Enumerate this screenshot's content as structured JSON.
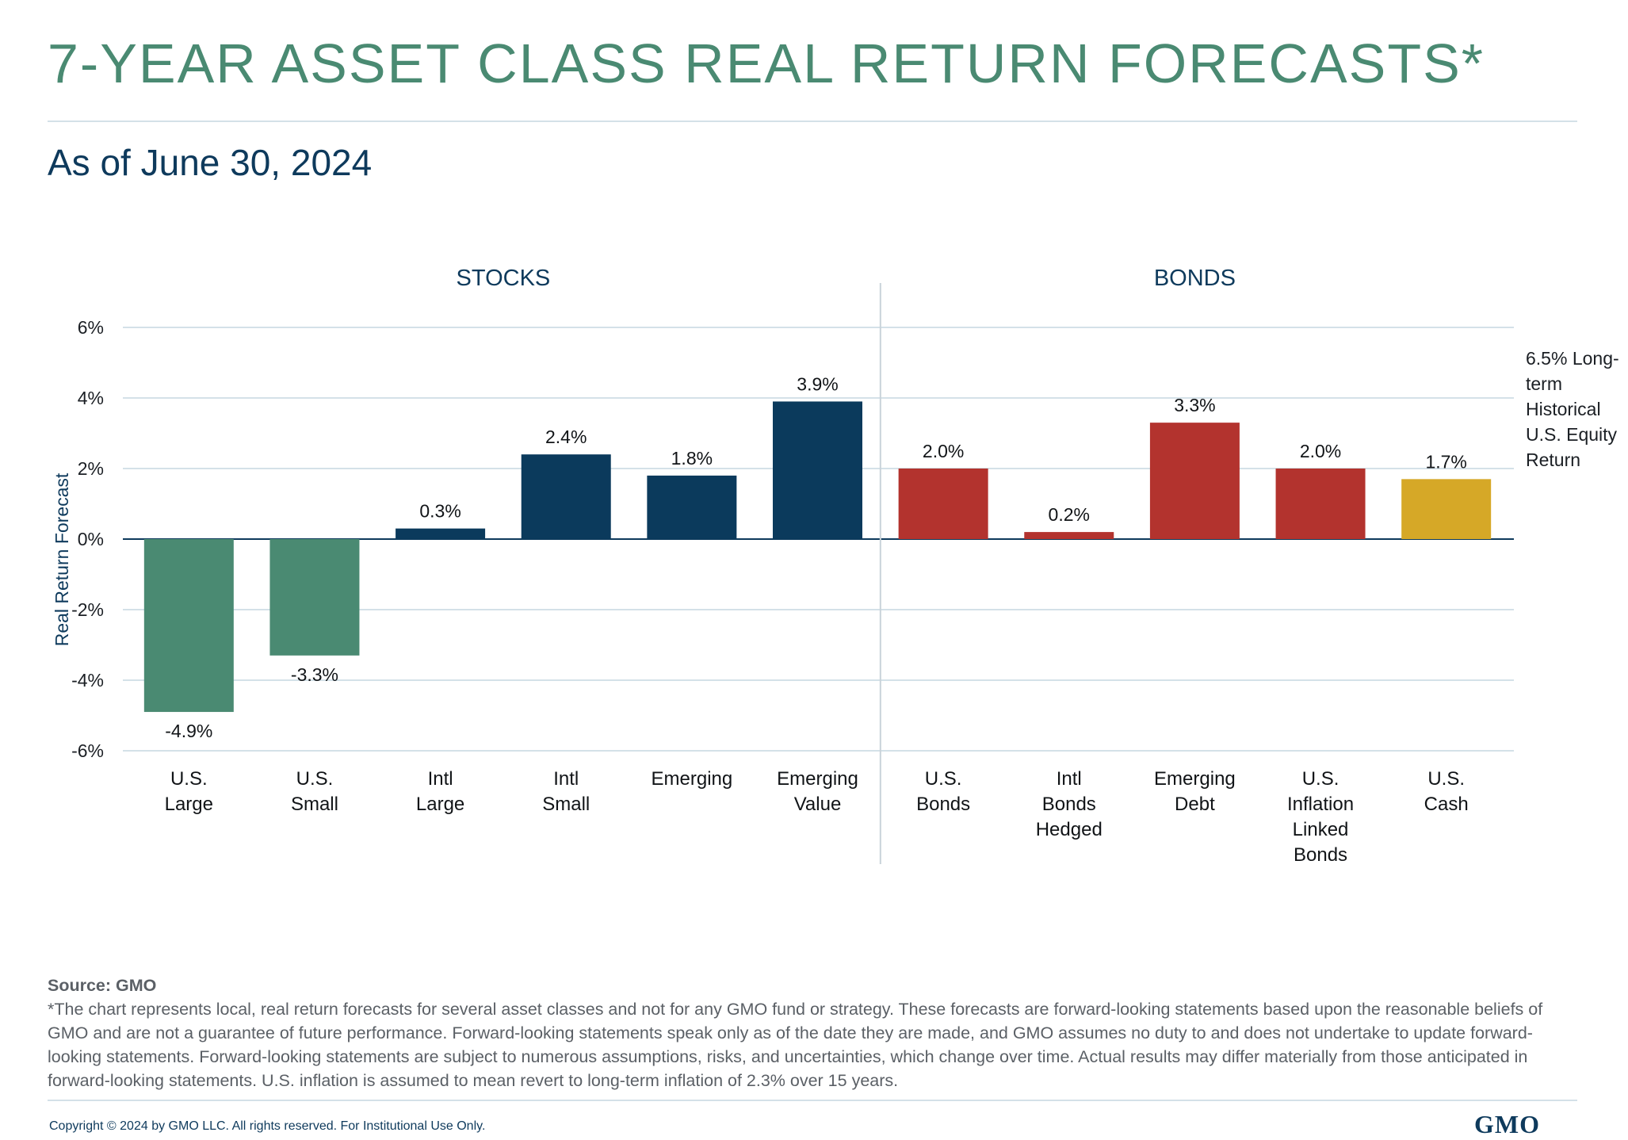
{
  "header": {
    "title": "7-YEAR ASSET CLASS REAL RETURN FORECASTS*",
    "subtitle": "As of June 30, 2024"
  },
  "footer": {
    "source": "Source: GMO",
    "note": "*The chart represents local, real return forecasts for several asset classes and not for any GMO fund or strategy. These forecasts are forward-looking statements based upon the reasonable beliefs of GMO and are not a guarantee of future performance. Forward-looking statements speak only as of the date they are made, and GMO assumes no duty to and does not undertake to update forward-looking statements. Forward-looking statements are subject to numerous assumptions, risks, and uncertainties, which change over time. Actual results may differ materially from those anticipated in forward-looking statements. U.S. inflation is assumed to mean revert to long-term inflation of 2.3% over 15 years.",
    "copyright": "Copyright © 2024 by GMO LLC. All rights reserved. For Institutional Use Only.",
    "logo": "GMO"
  },
  "colors": {
    "title": "#4a8a72",
    "navy": "#0e3a5c",
    "us_equity": "#4a8a72",
    "intl_equity": "#0b3a5c",
    "bonds": "#b3332e",
    "cash": "#d6a827",
    "grid": "#d4e1e8"
  },
  "chart_data": {
    "type": "bar",
    "ylabel": "Real Return Forecast",
    "ylim": [
      -6,
      6
    ],
    "yticks": [
      -6,
      -4,
      -2,
      0,
      2,
      4,
      6
    ],
    "ytick_labels": [
      "-6%",
      "-4%",
      "-2%",
      "0%",
      "2%",
      "4%",
      "6%"
    ],
    "groups": [
      {
        "name": "STOCKS",
        "count": 6
      },
      {
        "name": "BONDS",
        "count": 5
      }
    ],
    "categories": [
      [
        "U.S.",
        "Large"
      ],
      [
        "U.S.",
        "Small"
      ],
      [
        "Intl",
        "Large"
      ],
      [
        "Intl",
        "Small"
      ],
      [
        "Emerging"
      ],
      [
        "Emerging",
        "Value"
      ],
      [
        "U.S.",
        "Bonds"
      ],
      [
        "Intl",
        "Bonds",
        "Hedged"
      ],
      [
        "Emerging",
        "Debt"
      ],
      [
        "U.S.",
        "Inflation",
        "Linked",
        "Bonds"
      ],
      [
        "U.S.",
        "Cash"
      ]
    ],
    "values": [
      -4.9,
      -3.3,
      0.3,
      2.4,
      1.8,
      3.9,
      2.0,
      0.2,
      3.3,
      2.0,
      1.7
    ],
    "value_labels": [
      "-4.9%",
      "-3.3%",
      "0.3%",
      "2.4%",
      "1.8%",
      "3.9%",
      "2.0%",
      "0.2%",
      "3.3%",
      "2.0%",
      "1.7%"
    ],
    "color_keys": [
      "us_equity",
      "us_equity",
      "intl_equity",
      "intl_equity",
      "intl_equity",
      "intl_equity",
      "bonds",
      "bonds",
      "bonds",
      "bonds",
      "cash"
    ],
    "annotation": [
      "6.5% Long-",
      "term",
      "Historical",
      "U.S. Equity",
      "Return"
    ]
  }
}
